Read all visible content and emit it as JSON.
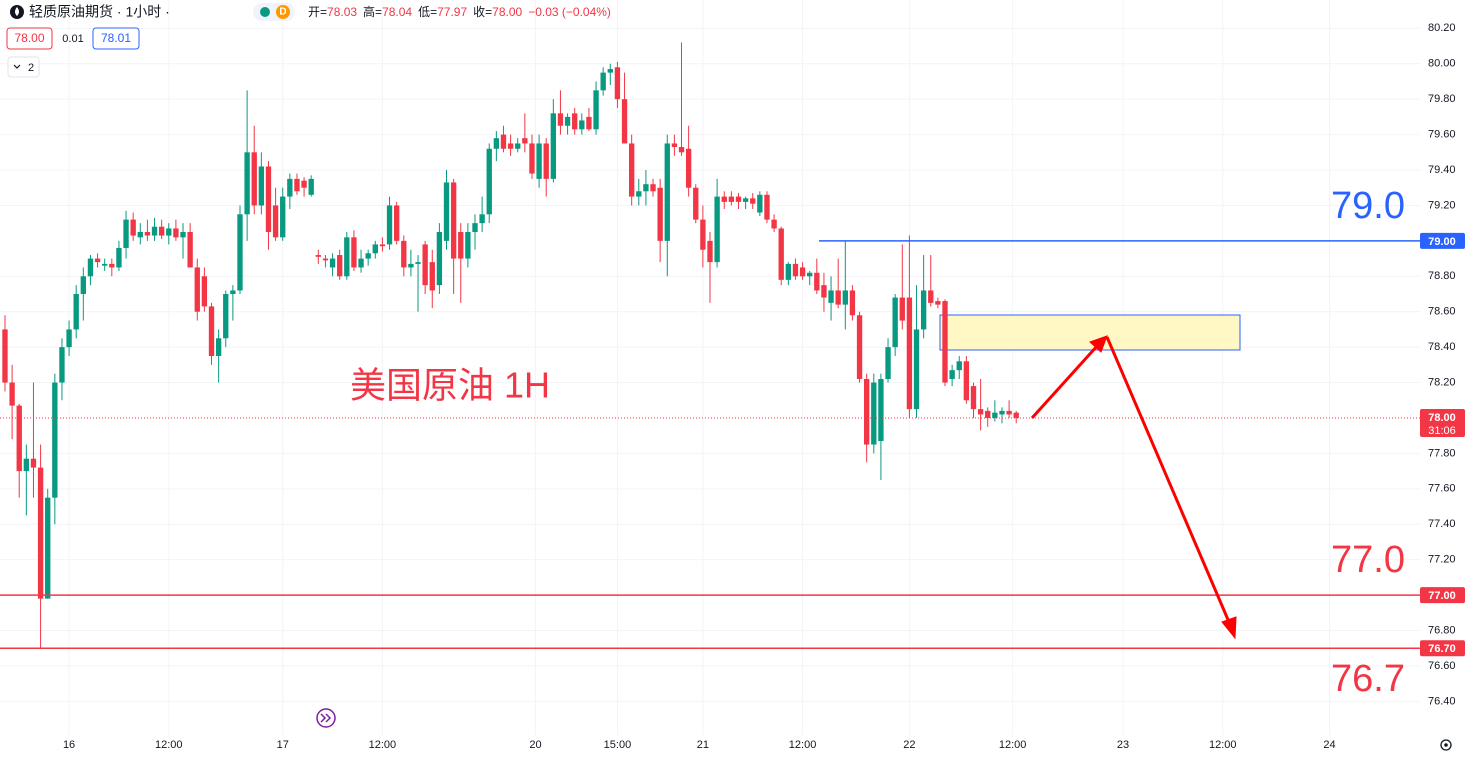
{
  "chart_data": {
    "type": "candlestick",
    "title": "轻质原油期货 · 1小时 ·",
    "session_badge": "D",
    "ohlc": [
      {
        "label": "开=",
        "value": "78.03"
      },
      {
        "label": "高=",
        "value": "78.04"
      },
      {
        "label": "低=",
        "value": "77.97"
      },
      {
        "label": "收=",
        "value": "78.00"
      }
    ],
    "change": "−0.03 (−0.04%)",
    "bid": "78.00",
    "spread": "0.01",
    "ask": "78.01",
    "indicators_count": "2",
    "annotation": "美国原油 1H",
    "up_color": "#089981",
    "down_color": "#f23645",
    "open": [
      78.5,
      78.2,
      78.07,
      77.7,
      77.77,
      77.72,
      76.98,
      77.55,
      78.2,
      78.4,
      78.5,
      78.7,
      78.8,
      78.9,
      78.86,
      78.87,
      78.85,
      78.96,
      79.12,
      79.02,
      79.05,
      79.03,
      79.08,
      79.03,
      79.07,
      79.02,
      79.05,
      78.85,
      78.8,
      78.63,
      78.35,
      78.45,
      78.7,
      78.72,
      79.15,
      79.5,
      79.2,
      79.42,
      79.2,
      79.02,
      79.25,
      79.35,
      79.34,
      79.26,
      78.92,
      78.9,
      78.85,
      78.92,
      78.8,
      79.02,
      78.85,
      78.9,
      78.93,
      78.98,
      78.98,
      79.2,
      79.0,
      78.85,
      78.87,
      78.98,
      78.88,
      78.75,
      79.0,
      79.33,
      79.05,
      78.9,
      79.05,
      79.1,
      79.15,
      79.52,
      79.6,
      79.55,
      79.52,
      79.58,
      79.55,
      79.35,
      79.55,
      79.35,
      79.72,
      79.65,
      79.72,
      79.63,
      79.7,
      79.63,
      79.85,
      79.95,
      79.98,
      79.8,
      79.55,
      79.25,
      79.28,
      79.32,
      79.3,
      79.0,
      79.55,
      79.53,
      79.52,
      79.3,
      79.12,
      79.0,
      78.88,
      79.25,
      79.25,
      79.25,
      79.22,
      79.24,
      79.16,
      79.26,
      79.12,
      79.07,
      78.78,
      78.87,
      78.85,
      78.8,
      78.82,
      78.75,
      78.65,
      78.72,
      78.64,
      78.72,
      78.58,
      78.22,
      77.85,
      77.87,
      78.22,
      78.4,
      78.68,
      78.68,
      78.05,
      78.5,
      78.72,
      78.66,
      78.66,
      78.22,
      78.27,
      78.32,
      78.18,
      78.05,
      78.04,
      78.0,
      78.02,
      78.04,
      78.03
    ],
    "high": [
      78.58,
      78.3,
      78.08,
      77.85,
      78.2,
      77.85,
      77.6,
      78.25,
      78.45,
      78.55,
      78.75,
      78.85,
      78.92,
      78.93,
      78.9,
      78.9,
      79.0,
      79.17,
      79.16,
      79.1,
      79.12,
      79.13,
      79.12,
      79.1,
      79.12,
      79.1,
      79.1,
      78.9,
      78.85,
      78.65,
      78.5,
      78.72,
      78.75,
      79.2,
      79.85,
      79.65,
      79.5,
      79.45,
      79.3,
      79.3,
      79.38,
      79.38,
      79.36,
      79.37,
      78.95,
      78.92,
      78.93,
      78.95,
      79.05,
      79.06,
      78.95,
      78.95,
      79.0,
      79.02,
      79.25,
      79.22,
      79.03,
      78.95,
      78.92,
      79.0,
      78.95,
      79.1,
      79.4,
      79.35,
      79.1,
      79.1,
      79.15,
      79.25,
      79.55,
      79.62,
      79.65,
      79.6,
      79.58,
      79.72,
      79.6,
      79.6,
      79.58,
      79.8,
      79.85,
      79.72,
      79.75,
      79.72,
      79.75,
      79.9,
      79.98,
      80.0,
      80.01,
      79.95,
      79.6,
      79.35,
      79.4,
      79.35,
      79.35,
      79.6,
      79.6,
      80.12,
      79.65,
      79.32,
      79.2,
      79.05,
      79.35,
      79.28,
      79.28,
      79.27,
      79.25,
      79.27,
      79.28,
      79.28,
      79.15,
      79.08,
      78.88,
      78.9,
      78.88,
      78.83,
      78.9,
      78.82,
      78.8,
      78.9,
      79.0,
      78.75,
      78.6,
      78.25,
      78.25,
      78.25,
      78.45,
      78.7,
      78.98,
      79.03,
      78.75,
      78.92,
      78.92,
      78.68,
      78.67,
      78.3,
      78.35,
      78.35,
      78.2,
      78.22,
      78.06,
      78.1,
      78.06,
      78.1,
      78.04
    ],
    "low": [
      78.15,
      77.88,
      77.55,
      77.45,
      77.55,
      76.7,
      76.98,
      77.4,
      78.1,
      78.35,
      78.45,
      78.55,
      78.75,
      78.85,
      78.83,
      78.8,
      78.83,
      78.9,
      79.0,
      78.98,
      79.0,
      79.0,
      79.01,
      78.98,
      79.0,
      78.9,
      78.85,
      78.55,
      78.6,
      78.3,
      78.2,
      78.4,
      78.55,
      78.7,
      79.0,
      79.15,
      79.15,
      78.95,
      79.0,
      79.0,
      79.18,
      79.26,
      79.25,
      79.25,
      78.87,
      78.85,
      78.8,
      78.78,
      78.78,
      78.83,
      78.82,
      78.86,
      78.9,
      78.94,
      78.95,
      78.98,
      78.8,
      78.8,
      78.6,
      78.7,
      78.62,
      78.7,
      78.95,
      78.7,
      78.65,
      78.85,
      78.95,
      79.05,
      79.1,
      79.45,
      79.5,
      79.48,
      79.5,
      79.5,
      79.35,
      79.3,
      79.25,
      79.33,
      79.6,
      79.6,
      79.6,
      79.6,
      79.62,
      79.6,
      79.82,
      79.88,
      79.75,
      79.55,
      79.2,
      79.2,
      79.2,
      79.25,
      78.88,
      78.8,
      79.48,
      79.48,
      79.25,
      79.1,
      78.85,
      78.65,
      78.85,
      79.18,
      79.2,
      79.18,
      79.18,
      79.18,
      79.14,
      79.1,
      79.05,
      78.75,
      78.75,
      78.78,
      78.78,
      78.75,
      78.7,
      78.6,
      78.55,
      78.62,
      78.5,
      78.55,
      78.2,
      77.75,
      77.8,
      77.65,
      78.2,
      78.35,
      78.5,
      78.0,
      78.0,
      78.45,
      78.63,
      78.62,
      78.18,
      78.18,
      78.22,
      78.08,
      78.0,
      77.93,
      77.95,
      77.98,
      77.97,
      78.0,
      77.97
    ],
    "close": [
      78.2,
      78.07,
      77.7,
      77.77,
      77.72,
      76.98,
      77.55,
      78.2,
      78.4,
      78.5,
      78.7,
      78.8,
      78.9,
      78.88,
      78.87,
      78.85,
      78.96,
      79.12,
      79.03,
      79.05,
      79.03,
      79.08,
      79.03,
      79.07,
      79.02,
      79.05,
      78.85,
      78.6,
      78.63,
      78.35,
      78.45,
      78.7,
      78.72,
      79.15,
      79.5,
      79.2,
      79.42,
      79.05,
      79.02,
      79.25,
      79.35,
      79.28,
      79.3,
      79.35,
      78.91,
      78.89,
      78.9,
      78.8,
      79.02,
      78.85,
      78.9,
      78.93,
      78.98,
      78.97,
      79.2,
      79.0,
      78.85,
      78.87,
      78.88,
      78.75,
      78.72,
      79.05,
      79.33,
      78.9,
      78.9,
      79.05,
      79.1,
      79.15,
      79.52,
      79.58,
      79.52,
      79.52,
      79.55,
      79.55,
      79.38,
      79.55,
      79.35,
      79.72,
      79.65,
      79.7,
      79.63,
      79.68,
      79.63,
      79.85,
      79.95,
      79.97,
      79.8,
      79.55,
      79.25,
      79.28,
      79.32,
      79.28,
      79.0,
      79.55,
      79.53,
      79.5,
      79.3,
      79.12,
      78.95,
      78.88,
      79.25,
      79.22,
      79.22,
      79.22,
      79.24,
      79.21,
      79.26,
      79.12,
      79.07,
      78.78,
      78.87,
      78.8,
      78.8,
      78.82,
      78.72,
      78.68,
      78.72,
      78.64,
      78.72,
      78.58,
      78.22,
      77.85,
      78.2,
      78.22,
      78.4,
      78.68,
      78.55,
      78.05,
      78.5,
      78.72,
      78.65,
      78.64,
      78.2,
      78.27,
      78.32,
      78.1,
      78.05,
      78.02,
      78.0,
      78.03,
      78.04,
      78.02,
      78.0
    ],
    "xlim": [
      -0.7,
      198.7
    ],
    "xticks": [
      {
        "value": 9,
        "label": "16"
      },
      {
        "value": 23,
        "label": "12:00"
      },
      {
        "value": 39,
        "label": "17"
      },
      {
        "value": 53,
        "label": "12:00"
      },
      {
        "value": 74.5,
        "label": "20"
      },
      {
        "value": 86,
        "label": "15:00"
      },
      {
        "value": 98,
        "label": "21"
      },
      {
        "value": 112,
        "label": "12:00"
      },
      {
        "value": 127,
        "label": "22"
      },
      {
        "value": 141.5,
        "label": "12:00"
      },
      {
        "value": 157,
        "label": "23"
      },
      {
        "value": 171,
        "label": "12:00"
      },
      {
        "value": 186,
        "label": "24"
      }
    ],
    "ylim": [
      76.21,
      80.36
    ],
    "yticks": [
      {
        "value": 80.2,
        "label": "80.20"
      },
      {
        "value": 80.0,
        "label": "80.00"
      },
      {
        "value": 79.8,
        "label": "79.80"
      },
      {
        "value": 79.6,
        "label": "79.60"
      },
      {
        "value": 79.4,
        "label": "79.40"
      },
      {
        "value": 79.2,
        "label": "79.20"
      },
      {
        "value": 78.8,
        "label": "78.80"
      },
      {
        "value": 78.6,
        "label": "78.60"
      },
      {
        "value": 78.4,
        "label": "78.40"
      },
      {
        "value": 78.2,
        "label": "78.20"
      },
      {
        "value": 77.8,
        "label": "77.80"
      },
      {
        "value": 77.6,
        "label": "77.60"
      },
      {
        "value": 77.4,
        "label": "77.40"
      },
      {
        "value": 77.2,
        "label": "77.20"
      },
      {
        "value": 76.8,
        "label": "76.80"
      },
      {
        "value": 76.6,
        "label": "76.60"
      },
      {
        "value": 76.4,
        "label": "76.40"
      }
    ],
    "grid": true,
    "levels": [
      {
        "value": 79.0,
        "label": "79.00",
        "tag": "79.0",
        "color": "#2962ff",
        "x_start": 114.3
      },
      {
        "value": 77.0,
        "label": "77.00",
        "tag": "77.0",
        "color": "#f23645",
        "x_start": -0.7
      },
      {
        "value": 76.7,
        "label": "76.70",
        "tag": "76.7",
        "color": "#f23645",
        "x_start": -0.7
      }
    ],
    "last_price": 78.0,
    "last_price_label": "78.00",
    "countdown": "31:06"
  }
}
